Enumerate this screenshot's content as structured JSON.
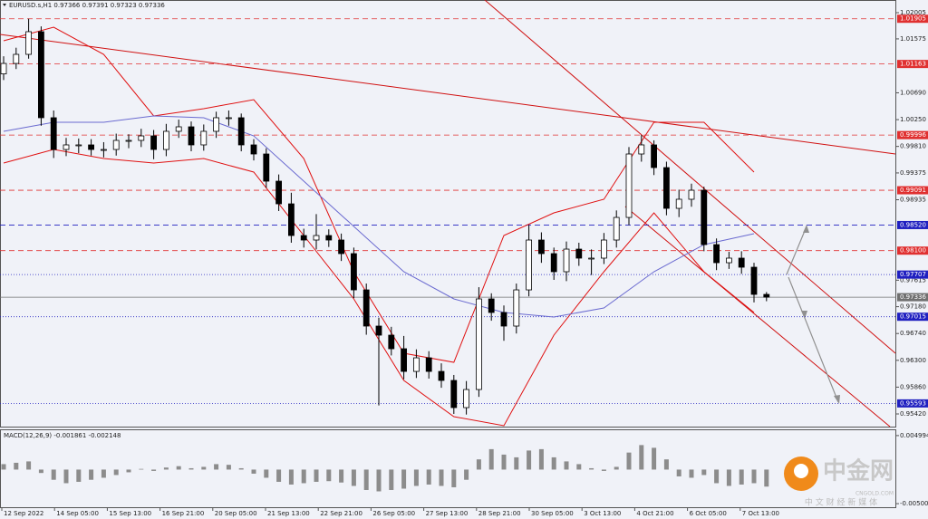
{
  "chart_data": {
    "type": "candlestick",
    "header": "EURUSD.s,H1 0.97366 0.97391 0.97323 0.97336",
    "ylim": [
      0.95227,
      1.02213
    ],
    "yticks": [
      1.02005,
      1.01575,
      {
        "value": 1.0069,
        "label": "1.00690"
      },
      {
        "value": 1.0025,
        "label": "1.00250"
      },
      {
        "value": 0.9981,
        "label": "0.99810"
      },
      0.99375,
      0.98935,
      0.97615,
      {
        "value": 0.9718,
        "label": "0.97180"
      },
      {
        "value": 0.9674,
        "label": "0.96740"
      },
      {
        "value": 0.963,
        "label": "0.96300"
      },
      {
        "value": 0.9586,
        "label": "0.95860"
      },
      {
        "value": 0.9542,
        "label": "0.95420"
      }
    ],
    "x_labels": [
      "12 Sep 2022",
      "14 Sep 05:00",
      "15 Sep 13:00",
      "16 Sep 21:00",
      "20 Sep 05:00",
      "21 Sep 13:00",
      "22 Sep 21:00",
      "26 Sep 05:00",
      "27 Sep 13:00",
      "28 Sep 21:00",
      "30 Sep 05:00",
      "3 Oct 13:00",
      "4 Oct 21:00",
      "6 Oct 05:00",
      "7 Oct 13:00"
    ],
    "color": "#000000",
    "open": [
      1.01,
      1.01172,
      1.01321,
      1.01693,
      1.00281,
      0.9976,
      0.99835,
      0.99835,
      0.9976,
      0.9976,
      0.99909,
      0.99909,
      0.99983,
      0.9976,
      1.00058,
      1.00132,
      0.99835,
      1.00058,
      1.00281,
      1.00281,
      0.99835,
      0.99686,
      0.9924,
      0.98868,
      0.98348,
      0.98274,
      0.98348,
      0.98274,
      0.98051,
      0.97456,
      0.96862,
      0.96713,
      0.9649,
      0.96118,
      0.96341,
      0.96118,
      0.9597,
      0.95524,
      0.95821,
      0.97308,
      0.97085,
      0.96862,
      0.97456,
      0.98274,
      0.98051,
      0.97754,
      0.98125,
      0.97977,
      0.97977,
      0.98274,
      0.98645,
      0.99686,
      0.99835,
      0.99463,
      0.98794,
      0.98943,
      0.99091,
      0.98199,
      0.97902,
      0.97977,
      0.97828,
      0.97382
    ],
    "high": [
      1.0129,
      1.0143,
      1.01905,
      1.0178,
      1.004,
      0.9995,
      0.9994,
      0.9993,
      0.9988,
      1.0002,
      1.0001,
      1.001,
      1.0008,
      1.0018,
      1.0025,
      1.0022,
      1.0017,
      1.0038,
      1.004,
      1.0035,
      0.9993,
      0.9978,
      0.9935,
      0.9905,
      0.9846,
      0.987,
      0.9845,
      0.9838,
      0.9815,
      0.9756,
      0.97,
      0.9685,
      0.967,
      0.9648,
      0.9645,
      0.9625,
      0.9606,
      0.9596,
      0.975,
      0.974,
      0.972,
      0.9756,
      0.9852,
      0.984,
      0.9815,
      0.9825,
      0.9823,
      0.9812,
      0.9839,
      0.9876,
      0.998,
      0.99996,
      0.9991,
      0.9956,
      0.991,
      0.992,
      0.9915,
      0.983,
      0.9808,
      0.9809,
      0.979,
      0.9742
    ],
    "low": [
      1.009,
      1.0108,
      1.0125,
      1.0015,
      0.9962,
      0.9965,
      0.997,
      0.9966,
      0.9963,
      0.9966,
      0.9978,
      0.998,
      0.996,
      0.9965,
      0.9995,
      0.9973,
      0.9974,
      0.9995,
      1.0015,
      0.9973,
      0.9958,
      0.9913,
      0.9875,
      0.9823,
      0.9815,
      0.9812,
      0.9816,
      0.9793,
      0.9732,
      0.9672,
      0.9556,
      0.9638,
      0.9599,
      0.9601,
      0.96,
      0.9585,
      0.9542,
      0.9541,
      0.957,
      0.9695,
      0.9662,
      0.9674,
      0.9735,
      0.979,
      0.9762,
      0.976,
      0.9785,
      0.977,
      0.9788,
      0.9815,
      0.9852,
      0.9956,
      0.9934,
      0.9868,
      0.9865,
      0.9882,
      0.9809,
      0.9778,
      0.978,
      0.9772,
      0.9725,
      0.9727
    ],
    "close": [
      1.01172,
      1.01321,
      1.01693,
      1.00281,
      0.9976,
      0.99835,
      0.99835,
      0.9976,
      0.9976,
      0.99909,
      0.99909,
      0.99983,
      0.9976,
      1.00058,
      1.00132,
      0.99835,
      1.00058,
      1.00281,
      1.00281,
      0.99835,
      0.99686,
      0.9924,
      0.98868,
      0.98348,
      0.98274,
      0.98348,
      0.98274,
      0.98051,
      0.97456,
      0.96862,
      0.96713,
      0.9649,
      0.96118,
      0.96341,
      0.96118,
      0.9597,
      0.95524,
      0.95821,
      0.97308,
      0.97085,
      0.96862,
      0.97456,
      0.98274,
      0.98051,
      0.97754,
      0.98125,
      0.97977,
      0.97977,
      0.98274,
      0.98645,
      0.99686,
      0.99835,
      0.99463,
      0.98794,
      0.98943,
      0.99091,
      0.98199,
      0.97902,
      0.97977,
      0.97828,
      0.97382,
      0.97336
    ],
    "indicator_x": [
      0,
      4,
      8,
      12,
      16,
      20,
      24,
      28,
      32,
      36,
      40,
      44,
      48,
      52,
      56,
      60
    ],
    "indicators": [
      {
        "color": "#e01010",
        "values": [
          1.01544,
          1.01767,
          1.01321,
          1.0031,
          1.00429,
          1.00578,
          0.99612,
          0.97754,
          0.96416,
          0.96267,
          0.98348,
          0.9872,
          0.98943,
          1.00206,
          1.00206,
          0.99389
        ]
      },
      {
        "color": "#e01010",
        "values": [
          0.99537,
          0.9976,
          0.99612,
          0.99537,
          0.99612,
          0.99389,
          0.98348,
          0.97308,
          0.9597,
          0.95375,
          0.95227,
          0.96713,
          0.97754,
          0.9872,
          0.97754,
          0.97085
        ]
      },
      {
        "color": "#6a6ad0",
        "values": [
          1.00058,
          1.00206,
          1.00206,
          1.0031,
          1.00281,
          0.99983,
          0.9924,
          0.98497,
          0.97754,
          0.97308,
          0.97085,
          0.9701,
          0.97159,
          0.97754,
          0.98199,
          0.98378
        ]
      }
    ],
    "levels": [
      {
        "value": 1.01905,
        "color": "#e03030",
        "style": "dash"
      },
      {
        "value": 1.01163,
        "color": "#e03030",
        "style": "dash"
      },
      {
        "value": 0.99996,
        "color": "#e03030",
        "style": "dash"
      },
      {
        "value": 0.99091,
        "color": "#e03030",
        "style": "dash"
      },
      {
        "value": 0.9852,
        "label": "0.98520",
        "color": "#2020c0",
        "style": "dash"
      },
      {
        "value": 0.981,
        "label": "0.98100",
        "color": "#e03030",
        "style": "dash"
      },
      {
        "value": 0.97707,
        "color": "#2020c0",
        "style": "dot"
      },
      {
        "value": 0.97336,
        "color": "#707070",
        "style": "solid"
      },
      {
        "value": 0.97015,
        "color": "#2020c0",
        "style": "dot"
      },
      {
        "value": 0.95593,
        "color": "#2020c0",
        "style": "dot"
      }
    ],
    "macd": {
      "title": "MACD(12,26,9) -0.001861 -0.002148",
      "color": "#8c8c8c",
      "ylim": [
        -0.00553,
        0.00578
      ],
      "yticks": [
        0.004994,
        -0.005003
      ],
      "values": [
        0.0008,
        0.001,
        0.0012,
        -0.0005,
        -0.0015,
        -0.002,
        -0.0018,
        -0.0015,
        -0.0012,
        -0.0008,
        -0.0004,
        0.0001,
        -0.0002,
        0.0003,
        0.0005,
        0.0002,
        0.0004,
        0.0008,
        0.0007,
        0.0002,
        -0.0006,
        -0.0012,
        -0.0018,
        -0.0022,
        -0.002,
        -0.0018,
        -0.0017,
        -0.0019,
        -0.0024,
        -0.003,
        -0.0032,
        -0.003,
        -0.0028,
        -0.0024,
        -0.0022,
        -0.0024,
        -0.0026,
        -0.0015,
        0.0015,
        0.003,
        0.0022,
        0.0018,
        0.0028,
        0.003,
        0.0018,
        0.0012,
        0.0008,
        0.0002,
        -0.0002,
        0.0004,
        0.0025,
        0.0036,
        0.0032,
        0.0015,
        -0.001,
        -0.0012,
        -0.0008,
        -0.002,
        -0.0024,
        -0.0022,
        -0.002,
        -0.0025
      ]
    }
  },
  "watermark": {
    "logo": "中金网",
    "site": "CNGOLD.COM",
    "slogan": "中 文 财 经 新 媒 体"
  }
}
